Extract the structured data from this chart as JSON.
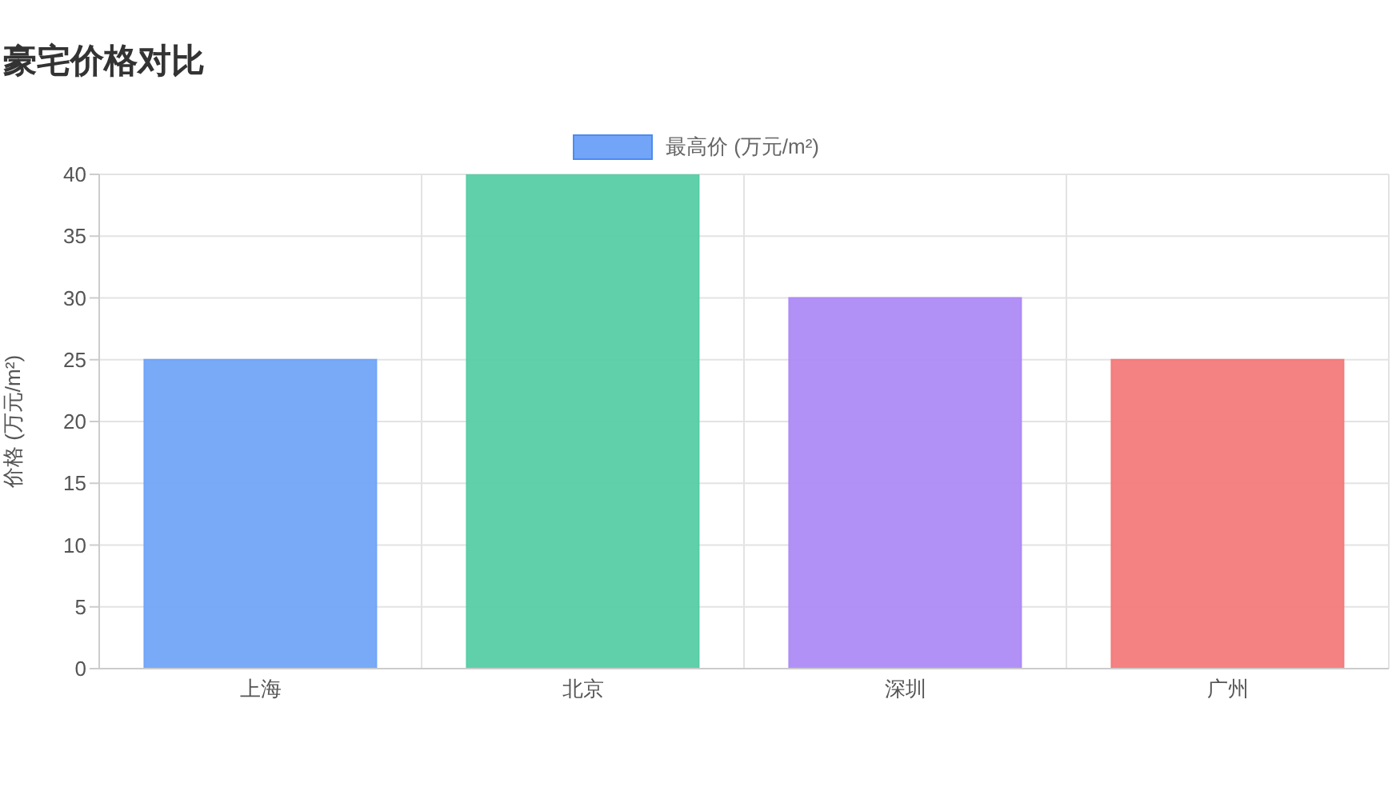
{
  "chart_data": {
    "type": "bar",
    "title": "豪宅价格对比",
    "ylabel": "价格 (万元/m²)",
    "categories": [
      "上海",
      "北京",
      "深圳",
      "广州"
    ],
    "series": [
      {
        "name": "最高价 (万元/m²)",
        "color": "#72a5f8",
        "colors": [
          "#72a5f8",
          "#57cda5",
          "#ae8bf6",
          "#f47b7b"
        ],
        "values": [
          25,
          40,
          30,
          25
        ]
      }
    ],
    "ylim": [
      0,
      40
    ],
    "yticks": [
      0,
      5,
      10,
      15,
      20,
      25,
      30,
      35,
      40
    ],
    "grid": true,
    "legend": "top"
  }
}
